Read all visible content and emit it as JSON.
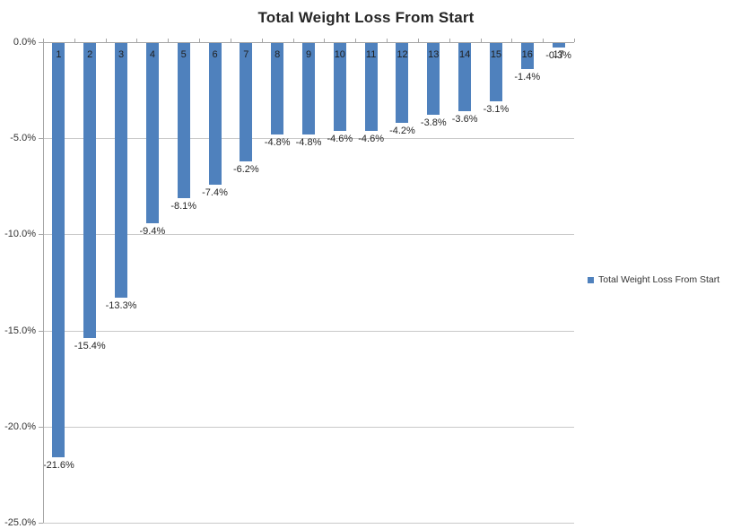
{
  "chart_data": {
    "type": "bar",
    "title": "Total Weight Loss From Start",
    "legend": {
      "label": "Total Weight Loss From Start",
      "position": "right",
      "swatch_color": "#4f81bd"
    },
    "categories": [
      "1",
      "2",
      "3",
      "4",
      "5",
      "6",
      "7",
      "8",
      "9",
      "10",
      "11",
      "12",
      "13",
      "14",
      "15",
      "16",
      "17"
    ],
    "values": [
      -21.6,
      -15.4,
      -13.3,
      -9.4,
      -8.1,
      -7.4,
      -6.2,
      -4.8,
      -4.8,
      -4.6,
      -4.6,
      -4.2,
      -3.8,
      -3.6,
      -3.1,
      -1.4,
      -0.3
    ],
    "value_labels": [
      "-21.6%",
      "-15.4%",
      "-13.3%",
      "-9.4%",
      "-8.1%",
      "-7.4%",
      "-6.2%",
      "-4.8%",
      "-4.8%",
      "-4.6%",
      "-4.6%",
      "-4.2%",
      "-3.8%",
      "-3.6%",
      "-3.1%",
      "-1.4%",
      "-0.3%"
    ],
    "xlabel": "",
    "ylabel": "",
    "ylim": [
      -25,
      0
    ],
    "y_tick_labels": [
      "0.0%",
      "-5.0%",
      "-10.0%",
      "-15.0%",
      "-20.0%",
      "-25.0%"
    ],
    "grid": true,
    "colors": {
      "bar": "#4f81bd",
      "gridline": "#c9c9c9",
      "axis": "#a6a6a6",
      "text": "#262626"
    }
  }
}
